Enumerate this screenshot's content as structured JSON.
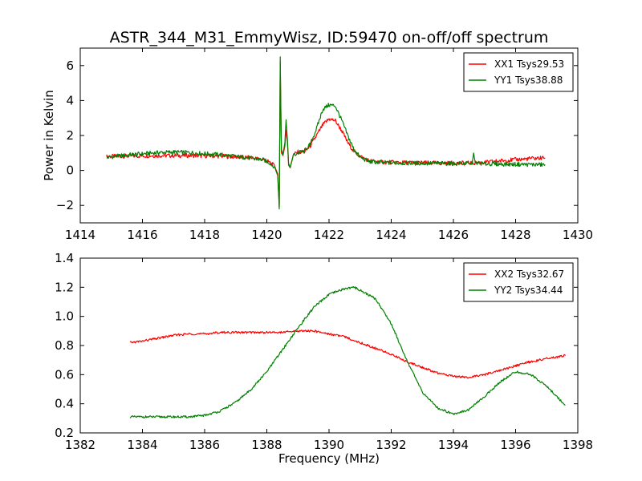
{
  "chart_data": [
    {
      "type": "line",
      "title": "ASTR_344_M31_EmmyWisz, ID:59470 on-off/off spectrum",
      "xlabel": "",
      "ylabel": "Power in Kelvin",
      "xlim": [
        1414,
        1430
      ],
      "ylim": [
        -3,
        7
      ],
      "xticks": [
        1414,
        1416,
        1418,
        1420,
        1422,
        1424,
        1426,
        1428,
        1430
      ],
      "yticks": [
        -2,
        0,
        2,
        4,
        6
      ],
      "xtick_labels": [
        "1414",
        "1416",
        "1418",
        "1420",
        "1422",
        "1424",
        "1426",
        "1428",
        "1430"
      ],
      "ytick_labels": [
        "−2",
        "0",
        "2",
        "4",
        "6"
      ],
      "grid": false,
      "legend_position": "top-right",
      "series": [
        {
          "name": "XX1 Tsys29.53",
          "color": "#ff0000",
          "x": [
            1414.85,
            1415.5,
            1416.5,
            1417.5,
            1418.5,
            1419.0,
            1419.5,
            1419.9,
            1420.1,
            1420.25,
            1420.35,
            1420.4,
            1420.43,
            1420.47,
            1420.52,
            1420.58,
            1420.62,
            1420.66,
            1420.7,
            1420.75,
            1420.85,
            1421.0,
            1421.2,
            1421.4,
            1421.6,
            1421.8,
            1422.0,
            1422.2,
            1422.4,
            1422.6,
            1422.8,
            1423.0,
            1423.3,
            1423.7,
            1424.5,
            1425.5,
            1426.5,
            1427.0,
            1427.5,
            1428.0,
            1428.5,
            1428.95
          ],
          "y": [
            0.8,
            0.82,
            0.85,
            0.85,
            0.82,
            0.78,
            0.72,
            0.62,
            0.45,
            0.25,
            -0.2,
            -2.1,
            6.2,
            1.0,
            0.85,
            1.4,
            2.3,
            1.6,
            0.3,
            0.15,
            0.9,
            1.05,
            1.05,
            1.4,
            2.0,
            2.6,
            2.95,
            2.85,
            2.3,
            1.6,
            1.1,
            0.8,
            0.55,
            0.48,
            0.45,
            0.42,
            0.42,
            0.45,
            0.55,
            0.62,
            0.68,
            0.72
          ]
        },
        {
          "name": "YY1 Tsys38.88",
          "color": "#008000",
          "x": [
            1414.85,
            1415.5,
            1416.5,
            1417.0,
            1417.5,
            1418.5,
            1419.0,
            1419.5,
            1419.9,
            1420.1,
            1420.25,
            1420.35,
            1420.4,
            1420.43,
            1420.47,
            1420.52,
            1420.58,
            1420.62,
            1420.66,
            1420.7,
            1420.75,
            1420.85,
            1421.0,
            1421.2,
            1421.4,
            1421.6,
            1421.8,
            1422.0,
            1422.2,
            1422.4,
            1422.6,
            1422.8,
            1423.0,
            1423.3,
            1423.7,
            1424.5,
            1425.5,
            1426.5,
            1426.6,
            1426.65,
            1426.7,
            1427.0,
            1428.0,
            1428.95
          ],
          "y": [
            0.75,
            0.88,
            1.02,
            1.05,
            1.02,
            0.9,
            0.8,
            0.7,
            0.6,
            0.42,
            0.2,
            -0.3,
            -2.2,
            6.5,
            1.2,
            0.9,
            1.6,
            2.9,
            1.8,
            0.4,
            0.15,
            0.85,
            1.0,
            1.1,
            1.5,
            2.4,
            3.5,
            3.75,
            3.7,
            2.9,
            2.0,
            1.2,
            0.75,
            0.5,
            0.45,
            0.42,
            0.4,
            0.4,
            0.35,
            1.0,
            0.45,
            0.38,
            0.35,
            0.33
          ]
        }
      ]
    },
    {
      "type": "line",
      "title": "",
      "xlabel": "Frequency (MHz)",
      "ylabel": "",
      "xlim": [
        1382,
        1398
      ],
      "ylim": [
        0.2,
        1.4
      ],
      "xticks": [
        1382,
        1384,
        1386,
        1388,
        1390,
        1392,
        1394,
        1396,
        1398
      ],
      "yticks": [
        0.2,
        0.4,
        0.6,
        0.8,
        1.0,
        1.2,
        1.4
      ],
      "xtick_labels": [
        "1382",
        "1384",
        "1386",
        "1388",
        "1390",
        "1392",
        "1394",
        "1396",
        "1398"
      ],
      "ytick_labels": [
        "0.2",
        "0.4",
        "0.6",
        "0.8",
        "1.0",
        "1.2",
        "1.4"
      ],
      "grid": false,
      "legend_position": "top-right",
      "series": [
        {
          "name": "XX2 Tsys32.67",
          "color": "#ff0000",
          "x": [
            1383.6,
            1384.0,
            1384.5,
            1385.0,
            1385.5,
            1386.0,
            1386.5,
            1387.0,
            1387.5,
            1388.0,
            1388.5,
            1389.0,
            1389.5,
            1390.0,
            1390.5,
            1391.0,
            1391.5,
            1392.0,
            1392.5,
            1393.0,
            1393.5,
            1394.0,
            1394.5,
            1395.0,
            1395.5,
            1396.0,
            1396.5,
            1397.0,
            1397.6
          ],
          "y": [
            0.82,
            0.83,
            0.85,
            0.87,
            0.88,
            0.88,
            0.89,
            0.89,
            0.89,
            0.89,
            0.89,
            0.9,
            0.9,
            0.88,
            0.86,
            0.82,
            0.78,
            0.74,
            0.69,
            0.65,
            0.61,
            0.59,
            0.58,
            0.6,
            0.63,
            0.66,
            0.69,
            0.71,
            0.73
          ]
        },
        {
          "name": "YY2 Tsys34.44",
          "color": "#008000",
          "x": [
            1383.6,
            1384.0,
            1384.5,
            1385.0,
            1385.5,
            1386.0,
            1386.5,
            1387.0,
            1387.5,
            1388.0,
            1388.5,
            1389.0,
            1389.5,
            1390.0,
            1390.5,
            1390.8,
            1391.0,
            1391.5,
            1392.0,
            1392.5,
            1393.0,
            1393.5,
            1394.0,
            1394.5,
            1395.0,
            1395.5,
            1396.0,
            1396.5,
            1397.0,
            1397.6
          ],
          "y": [
            0.31,
            0.31,
            0.31,
            0.31,
            0.31,
            0.32,
            0.35,
            0.41,
            0.5,
            0.62,
            0.77,
            0.92,
            1.06,
            1.15,
            1.19,
            1.2,
            1.18,
            1.12,
            0.95,
            0.7,
            0.48,
            0.37,
            0.33,
            0.36,
            0.45,
            0.55,
            0.62,
            0.6,
            0.52,
            0.39
          ]
        }
      ]
    }
  ]
}
